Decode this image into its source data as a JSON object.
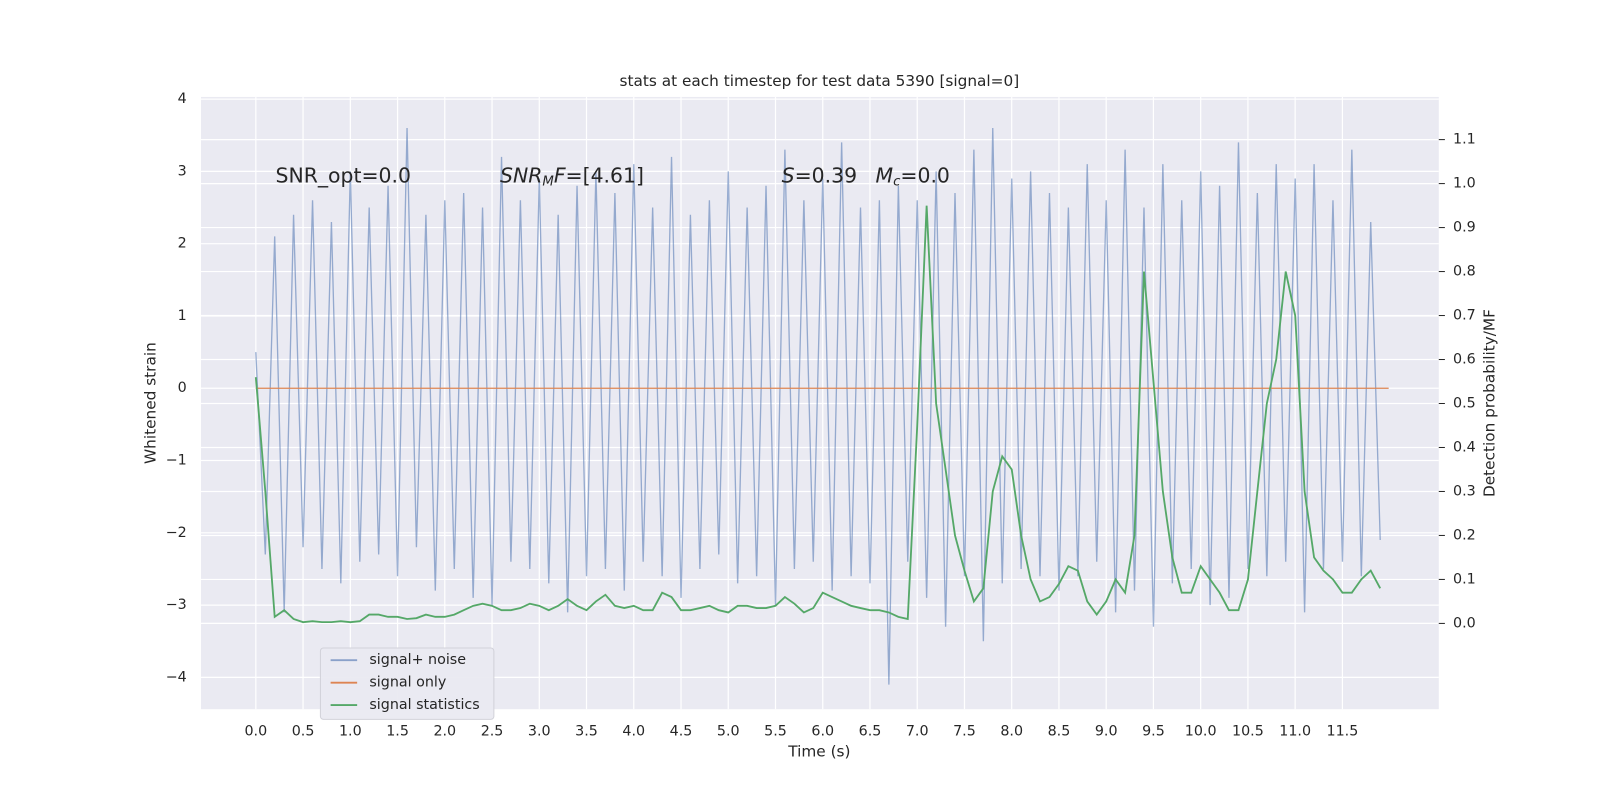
{
  "chart_data": {
    "type": "line",
    "title": "stats at each timestep for test data 5390 [signal=0]",
    "xlabel": "Time (s)",
    "ylabel": "Whitened strain",
    "y2label": "Detection probability/MF",
    "annotations": {
      "snr_opt": "SNR_opt=0.0",
      "snr_mf": [
        "SNR",
        "M",
        "F",
        "=[4.61]"
      ],
      "s": [
        "S",
        "=0.39"
      ],
      "mc": [
        "M",
        "c",
        "=0.0"
      ]
    },
    "grid": true,
    "legend": "lower left",
    "xlim": [
      -0.58,
      12.52
    ],
    "ylim": [
      -4.44,
      4.03
    ],
    "y2lim": [
      -0.195,
      1.197
    ],
    "xticks": [
      {
        "value": 0,
        "label": "0.0"
      },
      0.5,
      {
        "value": 1,
        "label": "1.0"
      },
      1.5,
      {
        "value": 2,
        "label": "2.0"
      },
      2.5,
      {
        "value": 3,
        "label": "3.0"
      },
      3.5,
      {
        "value": 4,
        "label": "4.0"
      },
      4.5,
      {
        "value": 5,
        "label": "5.0"
      },
      5.5,
      {
        "value": 6,
        "label": "6.0"
      },
      6.5,
      {
        "value": 7,
        "label": "7.0"
      },
      7.5,
      {
        "value": 8,
        "label": "8.0"
      },
      8.5,
      {
        "value": 9,
        "label": "9.0"
      },
      9.5,
      {
        "value": 10,
        "label": "10.0"
      },
      10.5,
      {
        "value": 11,
        "label": "11.0"
      },
      11.5
    ],
    "yticks": [
      {
        "value": -4,
        "label": "−4"
      },
      {
        "value": -3,
        "label": "−3"
      },
      {
        "value": -2,
        "label": "−2"
      },
      {
        "value": -1,
        "label": "−1"
      },
      0,
      1,
      2,
      3,
      4
    ],
    "y2ticks": [
      {
        "value": 0,
        "label": "0.0"
      },
      0.1,
      0.2,
      0.3,
      0.4,
      0.5,
      0.6,
      0.7,
      0.8,
      0.9,
      {
        "value": 1,
        "label": "1.0"
      },
      1.1
    ],
    "x": [
      0,
      0.1,
      0.2,
      0.3,
      0.4,
      0.5,
      0.6,
      0.7,
      0.8,
      0.9,
      1,
      1.1,
      1.2,
      1.3,
      1.4,
      1.5,
      1.6,
      1.7,
      1.8,
      1.9,
      2,
      2.1,
      2.2,
      2.3,
      2.4,
      2.5,
      2.6,
      2.7,
      2.8,
      2.9,
      3,
      3.1,
      3.2,
      3.3,
      3.4,
      3.5,
      3.6,
      3.7,
      3.8,
      3.9,
      4,
      4.1,
      4.2,
      4.3,
      4.4,
      4.5,
      4.6,
      4.7,
      4.8,
      4.9,
      5,
      5.1,
      5.2,
      5.3,
      5.4,
      5.5,
      5.6,
      5.7,
      5.8,
      5.9,
      6,
      6.1,
      6.2,
      6.3,
      6.4,
      6.5,
      6.6,
      6.7,
      6.8,
      6.9,
      7,
      7.1,
      7.2,
      7.3,
      7.4,
      7.5,
      7.6,
      7.7,
      7.8,
      7.9,
      8,
      8.1,
      8.2,
      8.3,
      8.4,
      8.5,
      8.6,
      8.7,
      8.8,
      8.9,
      9,
      9.1,
      9.2,
      9.3,
      9.4,
      9.5,
      9.6,
      9.7,
      9.8,
      9.9,
      10,
      10.1,
      10.2,
      10.3,
      10.4,
      10.5,
      10.6,
      10.7,
      10.8,
      10.9,
      11,
      11.1,
      11.2,
      11.3,
      11.4,
      11.5,
      11.6,
      11.7,
      11.8,
      11.9
    ],
    "series": [
      {
        "name": "signal+ noise",
        "color": "#4c72b0",
        "values": [
          0.5,
          -2.3,
          2.1,
          -3.1,
          2.4,
          -2.2,
          2.6,
          -2.5,
          2.3,
          -2.7,
          3.0,
          -2.4,
          2.5,
          -2.3,
          2.8,
          -2.6,
          3.6,
          -2.2,
          2.4,
          -2.8,
          2.6,
          -2.5,
          2.7,
          -2.9,
          2.5,
          -3.0,
          3.2,
          -2.4,
          2.6,
          -2.5,
          2.9,
          -2.7,
          2.4,
          -3.1,
          2.8,
          -2.6,
          3.0,
          -2.5,
          2.7,
          -2.8,
          3.1,
          -2.4,
          2.5,
          -2.6,
          3.2,
          -2.9,
          2.4,
          -2.5,
          2.6,
          -2.3,
          3.0,
          -2.7,
          2.5,
          -2.6,
          2.8,
          -3.0,
          3.3,
          -2.5,
          2.6,
          -2.4,
          2.9,
          -2.8,
          3.4,
          -2.6,
          2.5,
          -2.7,
          2.6,
          -4.1,
          2.8,
          -2.4,
          2.6,
          -2.9,
          3.0,
          -3.3,
          2.7,
          -2.6,
          3.3,
          -3.5,
          3.6,
          -2.7,
          2.9,
          -2.5,
          3.0,
          -2.6,
          2.7,
          -2.8,
          2.5,
          -2.6,
          3.1,
          -2.4,
          2.6,
          -3.1,
          3.3,
          -2.8,
          2.5,
          -3.3,
          3.1,
          -2.7,
          2.6,
          -2.5,
          3.0,
          -3.0,
          2.8,
          -2.9,
          3.4,
          -2.5,
          2.7,
          -2.6,
          3.1,
          -2.4,
          2.9,
          -3.1,
          3.1,
          -2.5,
          2.6,
          -2.4,
          3.3,
          -2.6,
          2.3,
          -2.1
        ]
      },
      {
        "name": "signal only",
        "color": "#dd8452",
        "x": [
          0,
          11.99
        ],
        "values": [
          0,
          0
        ]
      },
      {
        "name": "signal statistics",
        "color": "#55a868",
        "axis": "y2",
        "values": [
          0.56,
          0.3,
          0.015,
          0.03,
          0.01,
          0.003,
          0.005,
          0.003,
          0.003,
          0.005,
          0.003,
          0.005,
          0.02,
          0.02,
          0.015,
          0.015,
          0.01,
          0.012,
          0.02,
          0.015,
          0.015,
          0.02,
          0.03,
          0.04,
          0.045,
          0.04,
          0.03,
          0.03,
          0.035,
          0.045,
          0.04,
          0.03,
          0.04,
          0.055,
          0.04,
          0.03,
          0.05,
          0.065,
          0.04,
          0.035,
          0.04,
          0.03,
          0.03,
          0.07,
          0.06,
          0.03,
          0.03,
          0.035,
          0.04,
          0.03,
          0.025,
          0.04,
          0.04,
          0.035,
          0.035,
          0.04,
          0.06,
          0.045,
          0.025,
          0.035,
          0.07,
          0.06,
          0.05,
          0.04,
          0.035,
          0.03,
          0.03,
          0.025,
          0.015,
          0.01,
          0.45,
          0.95,
          0.5,
          0.35,
          0.2,
          0.12,
          0.05,
          0.08,
          0.3,
          0.38,
          0.35,
          0.2,
          0.1,
          0.05,
          0.06,
          0.09,
          0.13,
          0.12,
          0.05,
          0.02,
          0.05,
          0.1,
          0.07,
          0.2,
          0.8,
          0.55,
          0.3,
          0.15,
          0.07,
          0.07,
          0.13,
          0.1,
          0.07,
          0.03,
          0.03,
          0.1,
          0.3,
          0.5,
          0.6,
          0.8,
          0.7,
          0.3,
          0.15,
          0.12,
          0.1,
          0.07,
          0.07,
          0.1,
          0.12,
          0.08
        ]
      }
    ]
  }
}
